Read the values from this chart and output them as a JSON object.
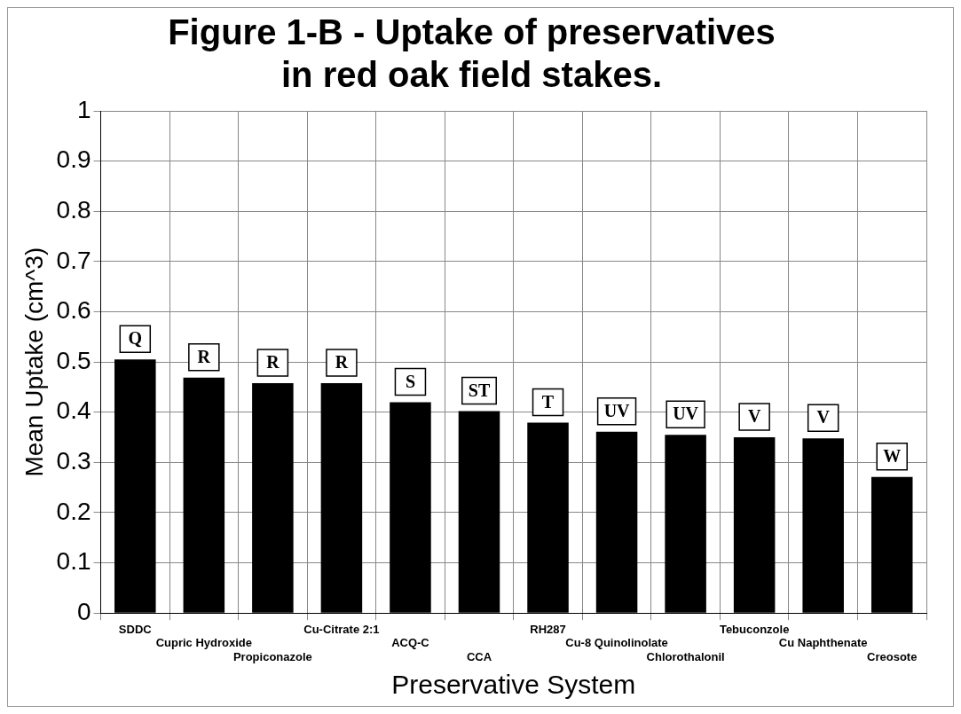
{
  "chart_data": {
    "type": "bar",
    "title": "Figure 1-B - Uptake of preservatives in red oak field stakes.",
    "xlabel": "Preservative System",
    "ylabel": "Mean Uptake (cm^3)",
    "categories": [
      "SDDC",
      "Cupric Hydroxide",
      "Propiconazole",
      "Cu-Citrate 2:1",
      "ACQ-C",
      "CCA",
      "RH287",
      "Cu-8 Quinolinolate",
      "Chlorothalonil",
      "Tebuconzole",
      "Cu Naphthenate",
      "Creosote"
    ],
    "values": [
      0.505,
      0.469,
      0.458,
      0.458,
      0.42,
      0.402,
      0.379,
      0.361,
      0.355,
      0.35,
      0.348,
      0.271
    ],
    "value_labels": [
      "Q",
      "R",
      "R",
      "R",
      "S",
      "ST",
      "T",
      "UV",
      "UV",
      "V",
      "V",
      "W"
    ],
    "color": "#000000",
    "ylim": [
      0,
      1
    ],
    "yticks": [
      0,
      0.1,
      0.2,
      0.3,
      0.4,
      0.5,
      0.6,
      0.7,
      0.8,
      0.9,
      1
    ],
    "grid": true
  }
}
